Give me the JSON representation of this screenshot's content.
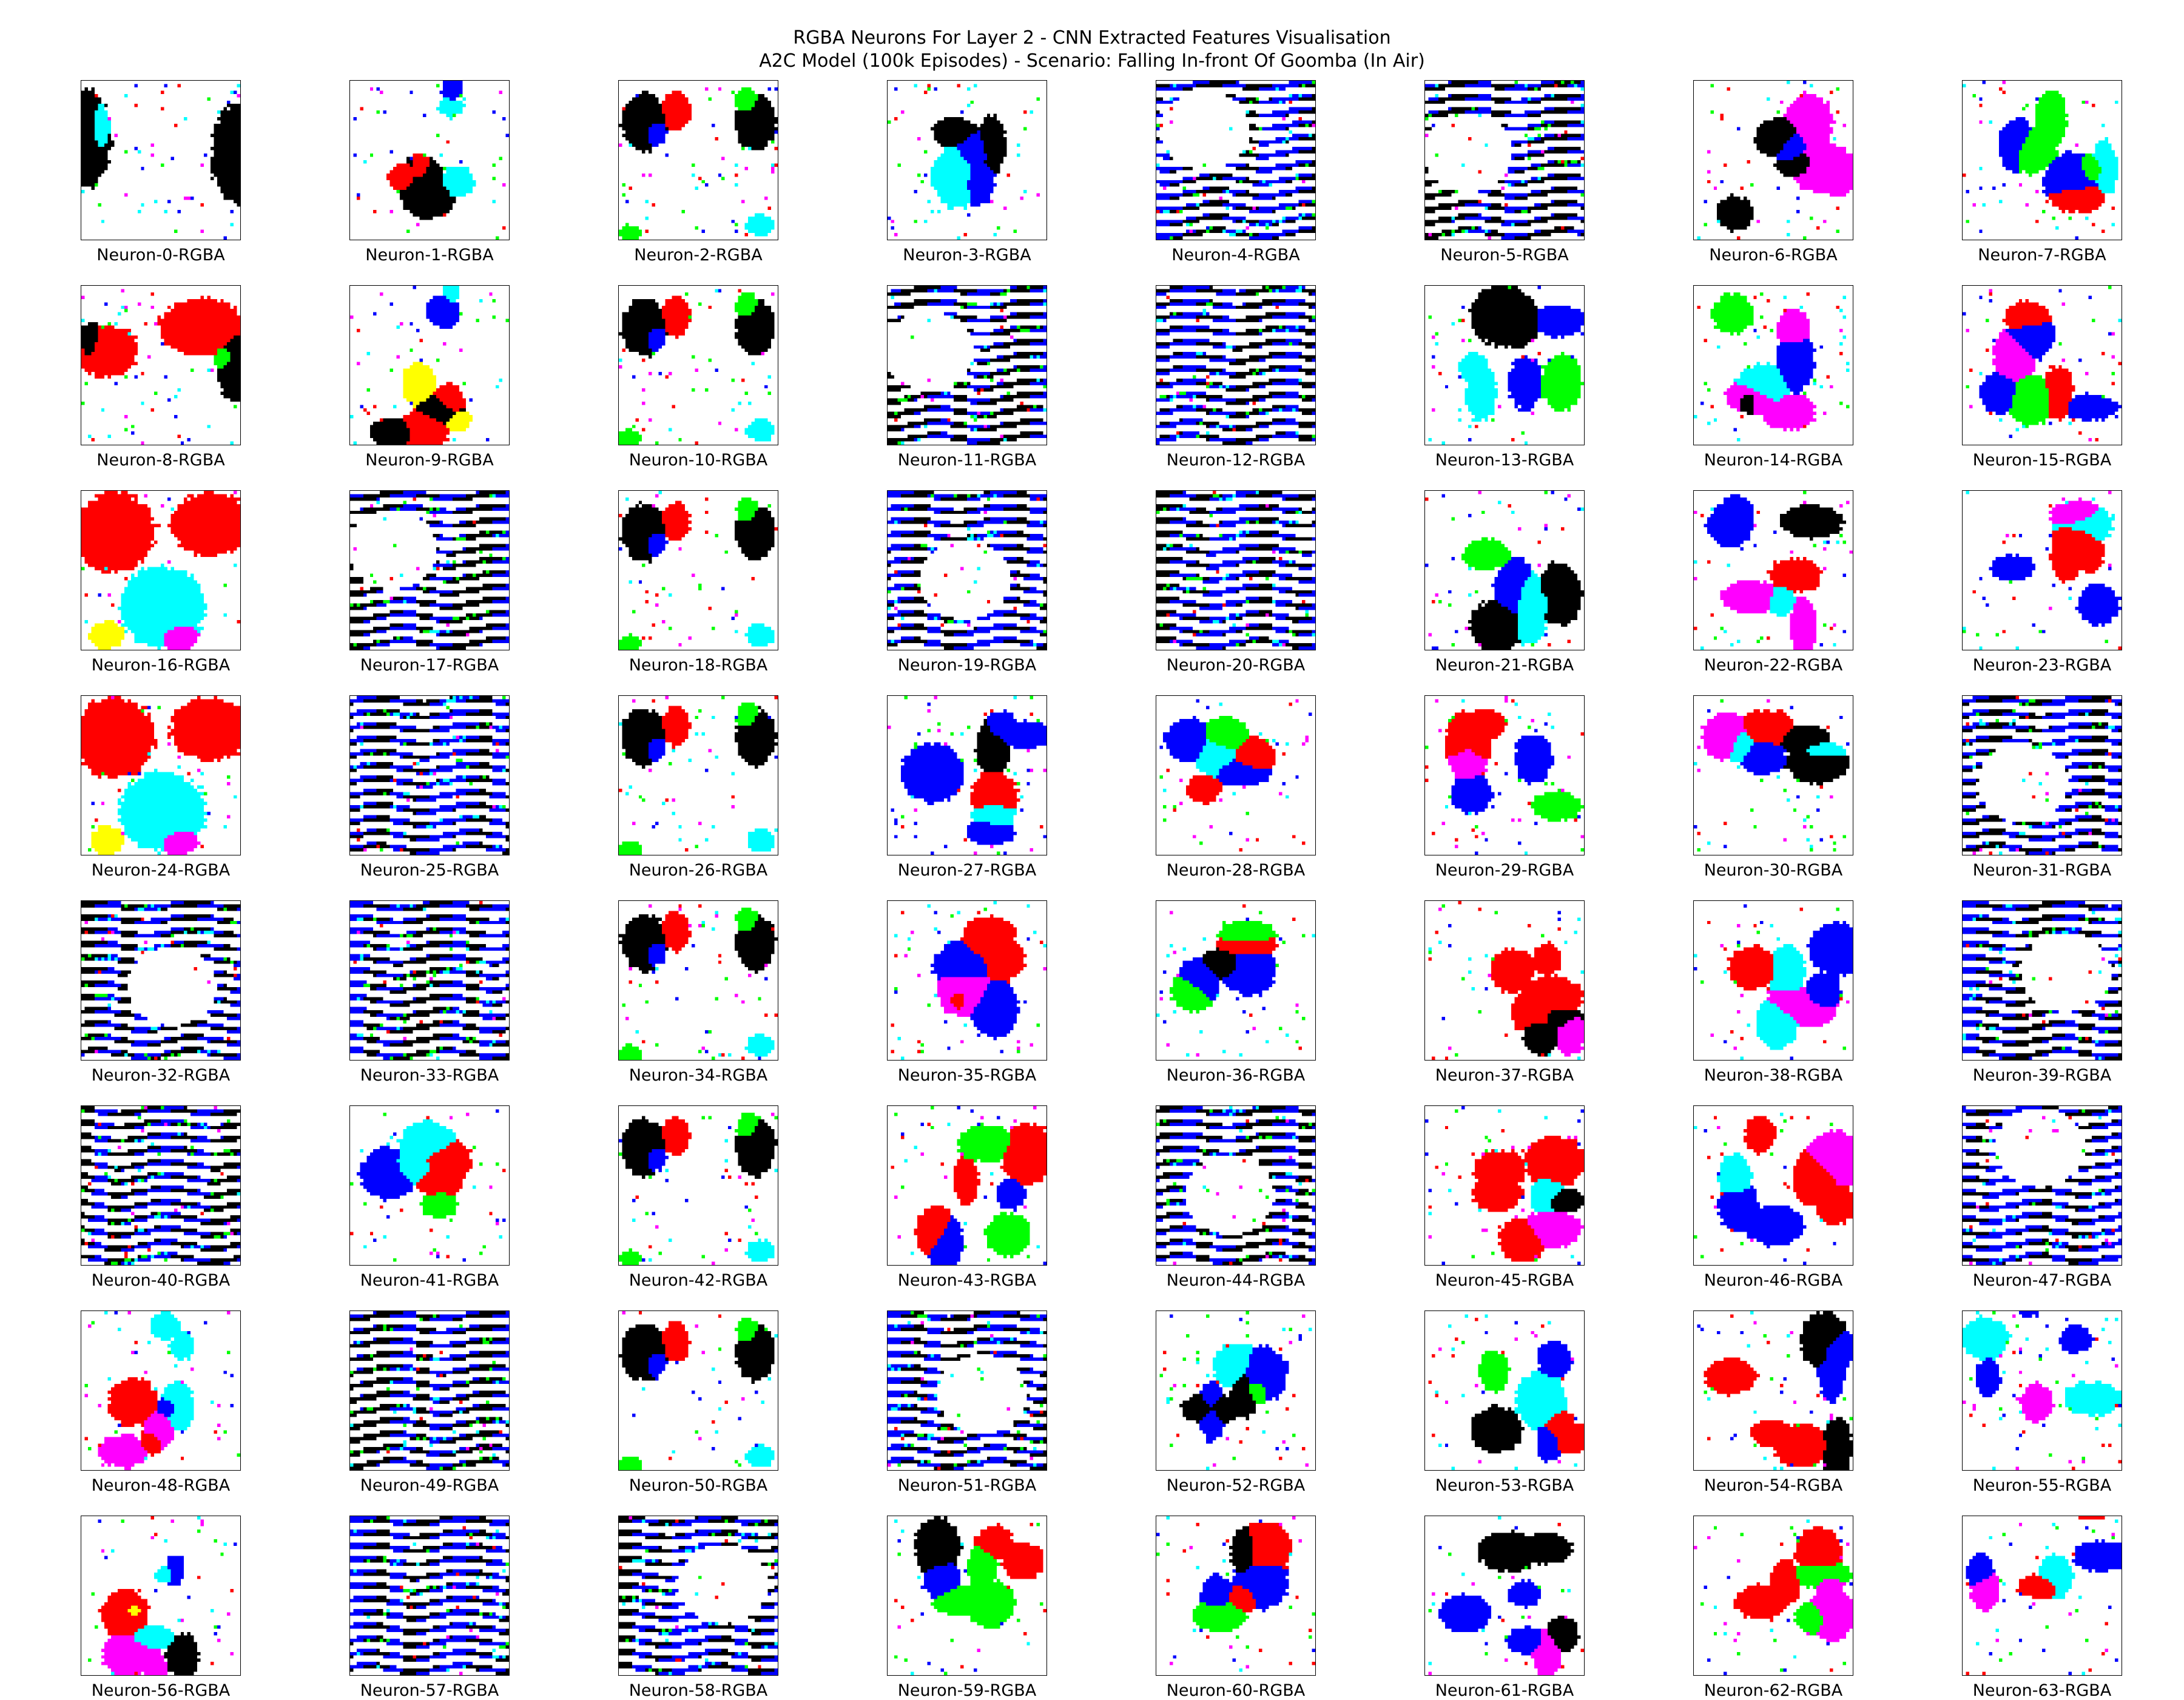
{
  "figure": {
    "title_line1": "RGBA Neurons For Layer 2 - CNN Extracted Features Visualisation",
    "title_line2": "A2C Model (100k Episodes) - Scenario: Falling In-front Of Goomba (In Air)"
  },
  "palette": {
    "white": "#ffffff",
    "black": "#000000",
    "red": "#ff0000",
    "green": "#00ff00",
    "blue": "#0000ff",
    "cyan": "#00ffff",
    "magenta": "#ff00ff",
    "yellow": "#ffff00"
  },
  "neurons": [
    {
      "label": "Neuron-0-RGBA",
      "style": "corners-black"
    },
    {
      "label": "Neuron-1-RGBA",
      "style": "blob-bottom"
    },
    {
      "label": "Neuron-2-RGBA",
      "style": "sparse-sides"
    },
    {
      "label": "Neuron-3-RGBA",
      "style": "blob-center"
    },
    {
      "label": "Neuron-4-RGBA",
      "style": "stripes-partial"
    },
    {
      "label": "Neuron-5-RGBA",
      "style": "stripes-partial"
    },
    {
      "label": "Neuron-6-RGBA",
      "style": "mixed-blobs"
    },
    {
      "label": "Neuron-7-RGBA",
      "style": "mixed-blobs"
    },
    {
      "label": "Neuron-8-RGBA",
      "style": "red-top"
    },
    {
      "label": "Neuron-9-RGBA",
      "style": "blob-bottom"
    },
    {
      "label": "Neuron-10-RGBA",
      "style": "sparse-sides"
    },
    {
      "label": "Neuron-11-RGBA",
      "style": "stripes-partial"
    },
    {
      "label": "Neuron-12-RGBA",
      "style": "stripes-dense"
    },
    {
      "label": "Neuron-13-RGBA",
      "style": "mixed-blobs"
    },
    {
      "label": "Neuron-14-RGBA",
      "style": "mixed-blobs"
    },
    {
      "label": "Neuron-15-RGBA",
      "style": "mixed-blobs"
    },
    {
      "label": "Neuron-16-RGBA",
      "style": "red-cyan"
    },
    {
      "label": "Neuron-17-RGBA",
      "style": "stripes-partial"
    },
    {
      "label": "Neuron-18-RGBA",
      "style": "sparse-sides"
    },
    {
      "label": "Neuron-19-RGBA",
      "style": "stripes-partial"
    },
    {
      "label": "Neuron-20-RGBA",
      "style": "stripes-dense"
    },
    {
      "label": "Neuron-21-RGBA",
      "style": "mixed-blobs"
    },
    {
      "label": "Neuron-22-RGBA",
      "style": "mixed-blobs"
    },
    {
      "label": "Neuron-23-RGBA",
      "style": "mixed-blobs"
    },
    {
      "label": "Neuron-24-RGBA",
      "style": "red-cyan"
    },
    {
      "label": "Neuron-25-RGBA",
      "style": "stripes-dense"
    },
    {
      "label": "Neuron-26-RGBA",
      "style": "sparse-sides"
    },
    {
      "label": "Neuron-27-RGBA",
      "style": "mixed-blobs"
    },
    {
      "label": "Neuron-28-RGBA",
      "style": "blob-center"
    },
    {
      "label": "Neuron-29-RGBA",
      "style": "mixed-blobs"
    },
    {
      "label": "Neuron-30-RGBA",
      "style": "mixed-blobs"
    },
    {
      "label": "Neuron-31-RGBA",
      "style": "stripes-partial"
    },
    {
      "label": "Neuron-32-RGBA",
      "style": "stripes-partial"
    },
    {
      "label": "Neuron-33-RGBA",
      "style": "stripes-dense"
    },
    {
      "label": "Neuron-34-RGBA",
      "style": "sparse-sides"
    },
    {
      "label": "Neuron-35-RGBA",
      "style": "mixed-blobs"
    },
    {
      "label": "Neuron-36-RGBA",
      "style": "blob-center"
    },
    {
      "label": "Neuron-37-RGBA",
      "style": "mixed-blobs"
    },
    {
      "label": "Neuron-38-RGBA",
      "style": "mixed-blobs"
    },
    {
      "label": "Neuron-39-RGBA",
      "style": "stripes-partial"
    },
    {
      "label": "Neuron-40-RGBA",
      "style": "stripes-dense"
    },
    {
      "label": "Neuron-41-RGBA",
      "style": "blob-center"
    },
    {
      "label": "Neuron-42-RGBA",
      "style": "sparse-sides"
    },
    {
      "label": "Neuron-43-RGBA",
      "style": "mixed-blobs"
    },
    {
      "label": "Neuron-44-RGBA",
      "style": "stripes-partial"
    },
    {
      "label": "Neuron-45-RGBA",
      "style": "mixed-blobs"
    },
    {
      "label": "Neuron-46-RGBA",
      "style": "mixed-blobs"
    },
    {
      "label": "Neuron-47-RGBA",
      "style": "stripes-partial"
    },
    {
      "label": "Neuron-48-RGBA",
      "style": "blob-bottom"
    },
    {
      "label": "Neuron-49-RGBA",
      "style": "stripes-dense"
    },
    {
      "label": "Neuron-50-RGBA",
      "style": "sparse-sides"
    },
    {
      "label": "Neuron-51-RGBA",
      "style": "stripes-partial"
    },
    {
      "label": "Neuron-52-RGBA",
      "style": "blob-center"
    },
    {
      "label": "Neuron-53-RGBA",
      "style": "mixed-blobs"
    },
    {
      "label": "Neuron-54-RGBA",
      "style": "mixed-blobs"
    },
    {
      "label": "Neuron-55-RGBA",
      "style": "blob-top"
    },
    {
      "label": "Neuron-56-RGBA",
      "style": "blob-bottom"
    },
    {
      "label": "Neuron-57-RGBA",
      "style": "stripes-dense"
    },
    {
      "label": "Neuron-58-RGBA",
      "style": "stripes-partial"
    },
    {
      "label": "Neuron-59-RGBA",
      "style": "mixed-blobs"
    },
    {
      "label": "Neuron-60-RGBA",
      "style": "blob-center"
    },
    {
      "label": "Neuron-61-RGBA",
      "style": "mixed-blobs"
    },
    {
      "label": "Neuron-62-RGBA",
      "style": "mixed-blobs"
    },
    {
      "label": "Neuron-63-RGBA",
      "style": "blob-top"
    }
  ]
}
